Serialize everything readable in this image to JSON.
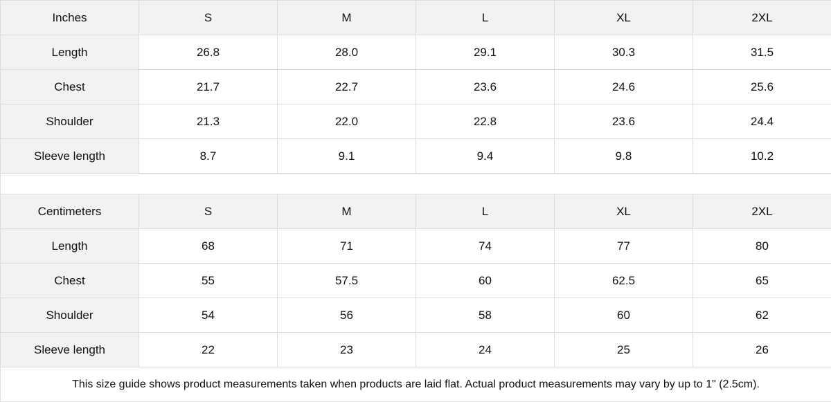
{
  "inches": {
    "header": [
      "Inches",
      "S",
      "M",
      "L",
      "XL",
      "2XL"
    ],
    "rows": [
      [
        "Length",
        "26.8",
        "28.0",
        "29.1",
        "30.3",
        "31.5"
      ],
      [
        "Chest",
        "21.7",
        "22.7",
        "23.6",
        "24.6",
        "25.6"
      ],
      [
        "Shoulder",
        "21.3",
        "22.0",
        "22.8",
        "23.6",
        "24.4"
      ],
      [
        "Sleeve length",
        "8.7",
        "9.1",
        "9.4",
        "9.8",
        "10.2"
      ]
    ]
  },
  "centimeters": {
    "header": [
      "Centimeters",
      "S",
      "M",
      "L",
      "XL",
      "2XL"
    ],
    "rows": [
      [
        "Length",
        "68",
        "71",
        "74",
        "77",
        "80"
      ],
      [
        "Chest",
        "55",
        "57.5",
        "60",
        "62.5",
        "65"
      ],
      [
        "Shoulder",
        "54",
        "56",
        "58",
        "60",
        "62"
      ],
      [
        "Sleeve length",
        "22",
        "23",
        "24",
        "25",
        "26"
      ]
    ]
  },
  "note": "This size guide shows product measurements taken when products are laid flat.  Actual product measurements may vary by up to 1\" (2.5cm).",
  "colors": {
    "header_bg": "#f2f2f2",
    "border": "#dcdcdc"
  }
}
